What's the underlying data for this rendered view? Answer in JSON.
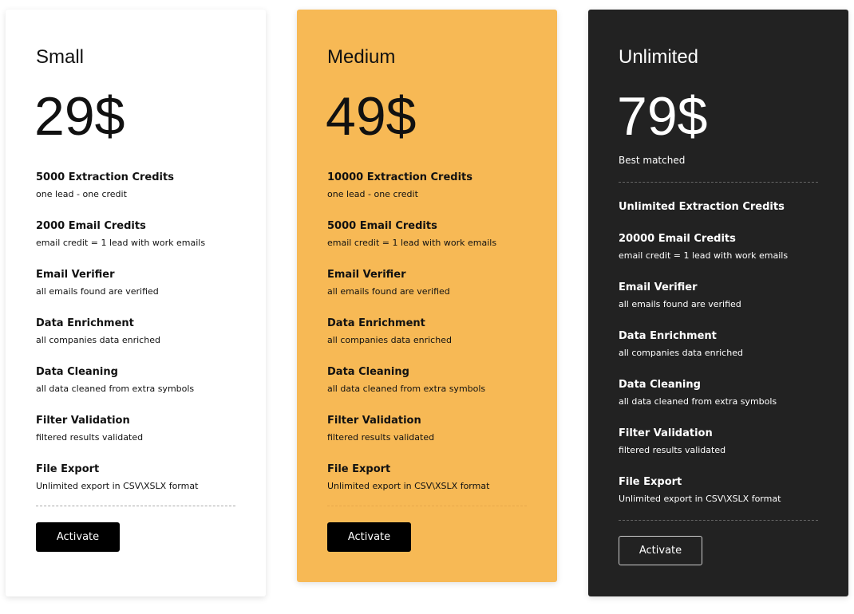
{
  "plans": [
    {
      "name": "Small",
      "price": "29$",
      "button": "Activate",
      "features": [
        {
          "title": "5000 Extraction Credits",
          "sub": "one lead - one credit"
        },
        {
          "title": "2000 Email Credits",
          "sub": "email credit = 1 lead with work emails"
        },
        {
          "title": "Email Verifier",
          "sub": "all emails found are verified"
        },
        {
          "title": "Data Enrichment",
          "sub": "all companies data enriched"
        },
        {
          "title": "Data Cleaning",
          "sub": "all data cleaned from extra symbols"
        },
        {
          "title": "Filter Validation",
          "sub": "filtered results validated"
        },
        {
          "title": "File Export",
          "sub": "Unlimited export in CSV\\XSLX format"
        }
      ]
    },
    {
      "name": "Medium",
      "price": "49$",
      "button": "Activate",
      "features": [
        {
          "title": "10000 Extraction Credits",
          "sub": "one lead - one credit"
        },
        {
          "title": "5000 Email Credits",
          "sub": "email credit = 1 lead with work emails"
        },
        {
          "title": "Email Verifier",
          "sub": "all emails found are verified"
        },
        {
          "title": "Data Enrichment",
          "sub": "all companies data enriched"
        },
        {
          "title": "Data Cleaning",
          "sub": "all data cleaned from extra symbols"
        },
        {
          "title": "Filter Validation",
          "sub": "filtered results validated"
        },
        {
          "title": "File Export",
          "sub": "Unlimited export in CSV\\XSLX format"
        }
      ]
    },
    {
      "name": "Unlimited",
      "price": "79$",
      "note": "Best matched",
      "button": "Activate",
      "features": [
        {
          "title": "Unlimited Extraction Credits",
          "sub": ""
        },
        {
          "title": "20000 Email Credits",
          "sub": "email credit = 1 lead with work emails"
        },
        {
          "title": "Email Verifier",
          "sub": "all emails found are verified"
        },
        {
          "title": "Data Enrichment",
          "sub": "all companies data enriched"
        },
        {
          "title": "Data Cleaning",
          "sub": "all data cleaned from extra symbols"
        },
        {
          "title": "Filter Validation",
          "sub": "filtered results validated"
        },
        {
          "title": "File Export",
          "sub": "Unlimited export in CSV\\XSLX format"
        }
      ]
    }
  ],
  "colors": {
    "medium_bg": "#f7b955",
    "unlimited_bg": "#222222",
    "button": "#000000"
  }
}
